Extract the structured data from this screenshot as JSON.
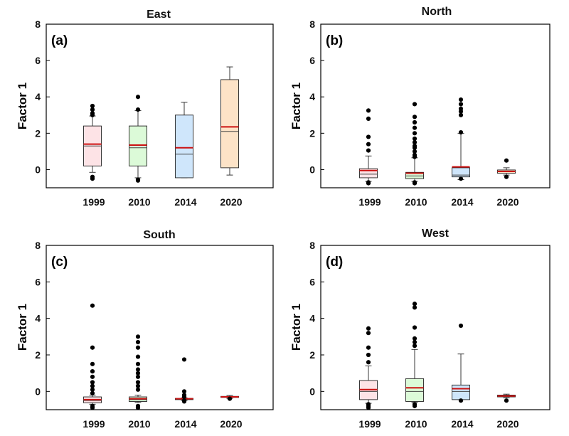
{
  "figure": {
    "ylabel": "Factor 1",
    "colors": {
      "1999": "#fde3e6",
      "2010": "#dcfad8",
      "2014": "#cfe6fb",
      "2020": "#fde3c7",
      "mean_line": "#cc1111",
      "median_line": "#444444"
    }
  },
  "chart_data": [
    {
      "type": "box",
      "title": "East",
      "panel_label": "(a)",
      "xlabel": "",
      "ylabel": "Factor 1",
      "categories": [
        "1999",
        "2010",
        "2014",
        "2020"
      ],
      "ylim": [
        -1,
        8
      ],
      "yticks": [
        0,
        2,
        4,
        6,
        8
      ],
      "boxes": [
        {
          "whisker_low": -0.15,
          "q1": 0.2,
          "median": 1.3,
          "mean": 1.4,
          "q3": 2.4,
          "whisker_high": 2.95,
          "outliers": [
            -0.4,
            -0.5,
            3.0,
            3.1,
            3.3,
            3.5
          ]
        },
        {
          "whisker_low": -0.45,
          "q1": 0.2,
          "median": 1.2,
          "mean": 1.35,
          "q3": 2.4,
          "whisker_high": 3.25,
          "outliers": [
            -0.55,
            -0.6,
            3.3,
            4.0
          ]
        },
        {
          "whisker_low": -0.45,
          "q1": -0.45,
          "median": 0.85,
          "mean": 1.2,
          "q3": 3.0,
          "whisker_high": 3.7,
          "outliers": []
        },
        {
          "whisker_low": -0.3,
          "q1": 0.1,
          "median": 2.1,
          "mean": 2.35,
          "q3": 4.95,
          "whisker_high": 5.65,
          "outliers": []
        }
      ]
    },
    {
      "type": "box",
      "title": "North",
      "panel_label": "(b)",
      "xlabel": "",
      "ylabel": "Factor 1",
      "categories": [
        "1999",
        "2010",
        "2014",
        "2020"
      ],
      "ylim": [
        -1,
        8
      ],
      "yticks": [
        0,
        2,
        4,
        6,
        8
      ],
      "boxes": [
        {
          "whisker_low": -0.65,
          "q1": -0.45,
          "median": -0.25,
          "mean": -0.05,
          "q3": 0.05,
          "whisker_high": 0.75,
          "outliers": [
            -0.7,
            -0.75,
            1.05,
            1.4,
            1.8,
            2.8,
            3.25
          ]
        },
        {
          "whisker_low": -0.65,
          "q1": -0.5,
          "median": -0.35,
          "mean": -0.2,
          "q3": -0.15,
          "whisker_high": 0.65,
          "outliers": [
            -0.7,
            -0.75,
            0.7,
            0.8,
            1.0,
            1.2,
            1.3,
            1.5,
            1.7,
            2.0,
            2.3,
            2.6,
            2.9,
            3.6
          ]
        },
        {
          "whisker_low": -0.55,
          "q1": -0.4,
          "median": -0.3,
          "mean": 0.15,
          "q3": 0.1,
          "whisker_high": 2.0,
          "outliers": [
            -0.5,
            2.05,
            3.0,
            3.2,
            3.35,
            3.6,
            3.85
          ]
        },
        {
          "whisker_low": -0.3,
          "q1": -0.2,
          "median": -0.12,
          "mean": -0.1,
          "q3": -0.02,
          "whisker_high": 0.1,
          "outliers": [
            -0.4,
            0.5
          ]
        }
      ]
    },
    {
      "type": "box",
      "title": "South",
      "panel_label": "(c)",
      "xlabel": "",
      "ylabel": "Factor 1",
      "categories": [
        "1999",
        "2010",
        "2014",
        "2020"
      ],
      "ylim": [
        -1,
        8
      ],
      "yticks": [
        0,
        2,
        4,
        6,
        8
      ],
      "boxes": [
        {
          "whisker_low": -0.7,
          "q1": -0.62,
          "median": -0.5,
          "mean": -0.45,
          "q3": -0.3,
          "whisker_high": -0.2,
          "outliers": [
            -0.8,
            -0.9,
            -0.1,
            0.1,
            0.3,
            0.5,
            0.8,
            1.1,
            1.5,
            2.4,
            4.7
          ]
        },
        {
          "whisker_low": -0.6,
          "q1": -0.55,
          "median": -0.45,
          "mean": -0.4,
          "q3": -0.3,
          "whisker_high": -0.2,
          "outliers": [
            -0.8,
            -0.9,
            0.1,
            0.3,
            0.5,
            0.8,
            1.0,
            1.2,
            1.5,
            1.9,
            2.4,
            2.7,
            3.0
          ]
        },
        {
          "whisker_low": -0.5,
          "q1": -0.45,
          "median": -0.42,
          "mean": -0.4,
          "q3": -0.38,
          "whisker_high": -0.35,
          "outliers": [
            -0.5,
            -0.55,
            -0.3,
            -0.2,
            0.0,
            1.75
          ]
        },
        {
          "whisker_low": -0.38,
          "q1": -0.33,
          "median": -0.3,
          "mean": -0.3,
          "q3": -0.27,
          "whisker_high": -0.22,
          "outliers": [
            -0.4
          ]
        }
      ]
    },
    {
      "type": "box",
      "title": "West",
      "panel_label": "(d)",
      "xlabel": "",
      "ylabel": "Factor 1",
      "categories": [
        "1999",
        "2010",
        "2014",
        "2020"
      ],
      "ylim": [
        -1,
        8
      ],
      "yticks": [
        0,
        2,
        4,
        6,
        8
      ],
      "boxes": [
        {
          "whisker_low": -0.65,
          "q1": -0.45,
          "median": 0.0,
          "mean": 0.1,
          "q3": 0.6,
          "whisker_high": 1.4,
          "outliers": [
            -0.7,
            -0.8,
            -0.9,
            1.6,
            2.0,
            2.4,
            3.2,
            3.45
          ]
        },
        {
          "whisker_low": -0.6,
          "q1": -0.55,
          "median": 0.0,
          "mean": 0.2,
          "q3": 0.7,
          "whisker_high": 2.3,
          "outliers": [
            -0.7,
            -0.8,
            2.5,
            2.7,
            2.9,
            3.5,
            4.6,
            4.8
          ]
        },
        {
          "whisker_low": -0.45,
          "q1": -0.45,
          "median": 0.0,
          "mean": 0.15,
          "q3": 0.35,
          "whisker_high": 2.05,
          "outliers": [
            -0.5,
            3.6
          ]
        },
        {
          "whisker_low": -0.35,
          "q1": -0.3,
          "median": -0.25,
          "mean": -0.25,
          "q3": -0.2,
          "whisker_high": -0.15,
          "outliers": [
            -0.5
          ]
        }
      ]
    }
  ]
}
